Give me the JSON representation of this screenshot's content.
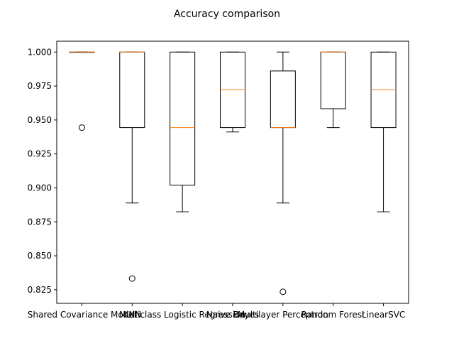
{
  "chart_data": {
    "type": "box",
    "title": "Accuracy comparison",
    "xlabel": "",
    "ylabel": "",
    "ylim": [
      0.815,
      1.008
    ],
    "yticks": [
      0.825,
      0.85,
      0.875,
      0.9,
      0.925,
      0.95,
      0.975,
      1.0
    ],
    "ytick_labels": [
      "0.825",
      "0.850",
      "0.875",
      "0.900",
      "0.925",
      "0.950",
      "0.975",
      "1.000"
    ],
    "grid": false,
    "legend": "none",
    "colors": {
      "box": "#000000",
      "median": "#ff7f0e",
      "flier": "#000000"
    },
    "categories": [
      "Shared Covariance Model",
      "KNN",
      "Multiclass Logistic Regression",
      "Naive Bayes",
      "Multilayer Perceptron",
      "Random Forest",
      "LinearSVC"
    ],
    "boxes": [
      {
        "whisker_low": 1.0,
        "q1": 1.0,
        "median": 1.0,
        "q3": 1.0,
        "whisker_high": 1.0,
        "fliers": [
          0.9444
        ]
      },
      {
        "whisker_low": 0.8889,
        "q1": 0.9444,
        "median": 1.0,
        "q3": 1.0,
        "whisker_high": 1.0,
        "fliers": [
          0.8333
        ]
      },
      {
        "whisker_low": 0.8824,
        "q1": 0.902,
        "median": 0.9444,
        "q3": 1.0,
        "whisker_high": 1.0,
        "fliers": []
      },
      {
        "whisker_low": 0.9412,
        "q1": 0.9444,
        "median": 0.9722,
        "q3": 1.0,
        "whisker_high": 1.0,
        "fliers": []
      },
      {
        "whisker_low": 0.8889,
        "q1": 0.9444,
        "median": 0.9444,
        "q3": 0.9861,
        "whisker_high": 1.0,
        "fliers": [
          0.8235
        ]
      },
      {
        "whisker_low": 0.9444,
        "q1": 0.9583,
        "median": 1.0,
        "q3": 1.0,
        "whisker_high": 1.0,
        "fliers": []
      },
      {
        "whisker_low": 0.8824,
        "q1": 0.9444,
        "median": 0.9722,
        "q3": 1.0,
        "whisker_high": 1.0,
        "fliers": []
      }
    ]
  }
}
